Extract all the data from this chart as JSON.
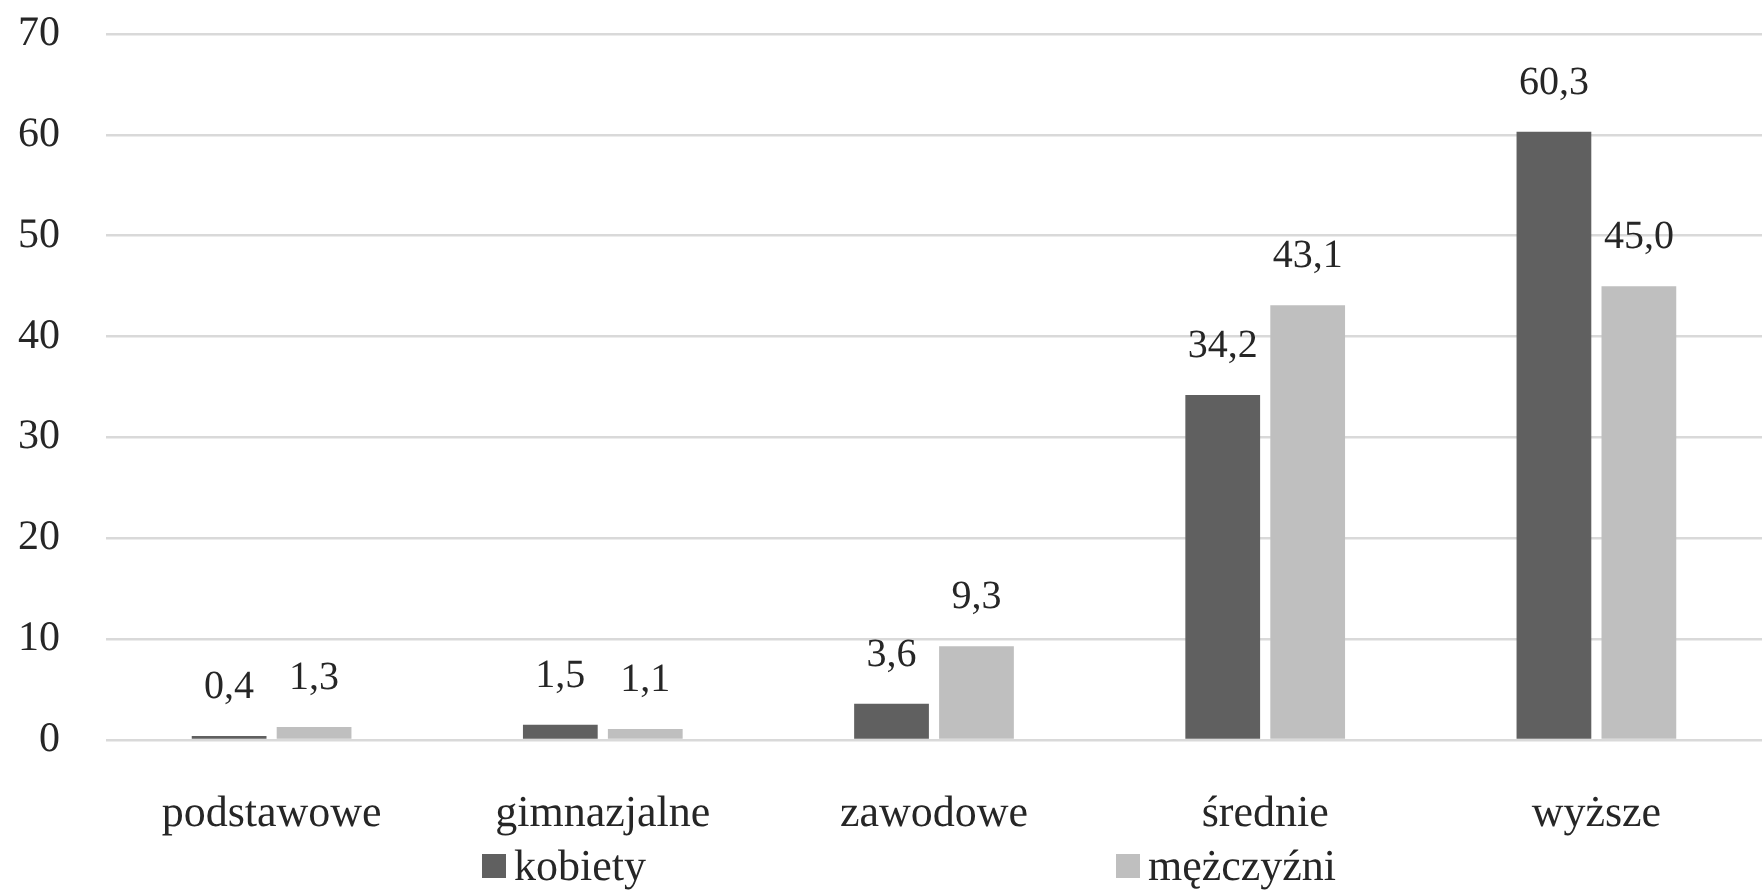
{
  "chart_data": {
    "type": "bar",
    "categories": [
      "podstawowe",
      "gimnazjalne",
      "zawodowe",
      "średnie",
      "wyższe"
    ],
    "series": [
      {
        "name": "kobiety",
        "color": "#606060",
        "values": [
          0.4,
          1.5,
          3.6,
          34.2,
          60.3
        ],
        "value_labels": [
          "0,4",
          "1,5",
          "3,6",
          "34,2",
          "60,3"
        ]
      },
      {
        "name": "mężczyźni",
        "color": "#bfbfbf",
        "values": [
          1.3,
          1.1,
          9.3,
          43.1,
          45.0
        ],
        "value_labels": [
          "1,3",
          "1,1",
          "9,3",
          "43,1",
          "45,0"
        ]
      }
    ],
    "ylim": [
      0,
      70
    ],
    "yticks": [
      0,
      10,
      20,
      30,
      40,
      50,
      60,
      70
    ],
    "grid": "y",
    "legend": "bottom"
  }
}
